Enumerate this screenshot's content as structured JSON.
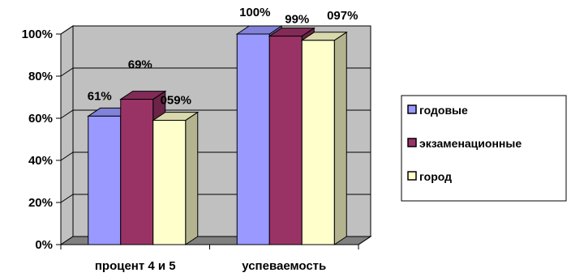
{
  "chart_data": {
    "type": "bar",
    "title": "",
    "xlabel": "",
    "ylabel": "",
    "ylim": [
      0,
      100
    ],
    "y_ticks": [
      "0%",
      "20%",
      "40%",
      "60%",
      "80%",
      "100%"
    ],
    "categories": [
      "процент 4 и 5",
      "успеваемость"
    ],
    "series": [
      {
        "name": "годовые",
        "values": [
          61,
          100
        ],
        "labels": [
          "61%",
          "100%"
        ],
        "color": "#9999ff"
      },
      {
        "name": "экзаменационные",
        "values": [
          69,
          99
        ],
        "labels": [
          "69%",
          "99%"
        ],
        "color": "#993366"
      },
      {
        "name": "город",
        "values": [
          59,
          97
        ],
        "labels": [
          "059%",
          "097%"
        ],
        "color": "#ffffcc"
      }
    ],
    "style": "3d-clustered",
    "grid": true,
    "legend_position": "right",
    "colors": {
      "wall": "#c0c0c0",
      "floor": "#808080",
      "grid": "#000000"
    }
  }
}
